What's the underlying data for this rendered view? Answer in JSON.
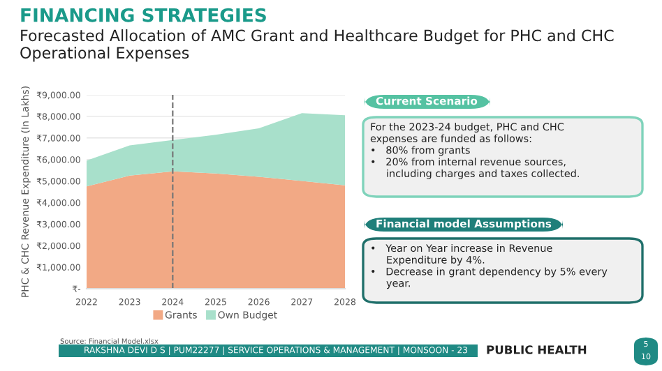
{
  "chart_data": {
    "type": "area",
    "stacked": true,
    "title": "FINANCING STRATEGIES",
    "subtitle": "Forecasted Allocation of AMC Grant and Healthcare Budget for PHC and CHC Operational Expenses",
    "ylabel": "PHC & CHC Revenue Expenditure (In Lakhs)",
    "x": [
      2022,
      2023,
      2024,
      2025,
      2026,
      2027,
      2028
    ],
    "series": [
      {
        "name": "Grants",
        "color": "#f2a985",
        "values": [
          4750,
          5250,
          5450,
          5350,
          5200,
          5000,
          4800
        ]
      },
      {
        "name": "Own Budget",
        "color": "#a8e0cb",
        "values": [
          1200,
          1400,
          1450,
          1800,
          2250,
          3150,
          3250
        ]
      }
    ],
    "xlim": [
      2022,
      2028
    ],
    "xticks": [
      2022,
      2023,
      2024,
      2025,
      2026,
      2027,
      2028
    ],
    "ylim": [
      0,
      9000
    ],
    "yticks": [
      {
        "value": 0,
        "label": "₹-"
      },
      {
        "value": 1000,
        "label": "₹1,000.00"
      },
      {
        "value": 2000,
        "label": "₹2,000.00"
      },
      {
        "value": 3000,
        "label": "₹3,000.00"
      },
      {
        "value": 4000,
        "label": "₹4,000.00"
      },
      {
        "value": 5000,
        "label": "₹5,000.00"
      },
      {
        "value": 6000,
        "label": "₹6,000.00"
      },
      {
        "value": 7000,
        "label": "₹7,000.00"
      },
      {
        "value": 8000,
        "label": "₹8,000.00"
      },
      {
        "value": 9000,
        "label": "₹9,000.00"
      }
    ],
    "grid": "y",
    "legend": "bottom",
    "ref_lines": [
      {
        "axis": "x",
        "value": 2024,
        "color": "#777777",
        "line_style": "dashed"
      }
    ],
    "annotations": [
      "Current Scenario",
      "For the 2023-24 budget, PHC and CHC\nexpenses are funded as follows:\n•   80% from grants\n•   20% from internal revenue sources,\n     including charges and taxes collected.",
      "Financial model Assumptions",
      "•   Year on Year increase in Revenue\n     Expenditure by 4%.\n•   Decrease in grant dependency by 5% every\n     year.",
      "Source: Financial Model.xlsx",
      "RAKSHNA DEVI D S | PUM22277 | SERVICE OPERATIONS & MANAGEMENT | MONSOON - 23",
      "PUBLIC HEALTH",
      "5",
      "10"
    ]
  }
}
